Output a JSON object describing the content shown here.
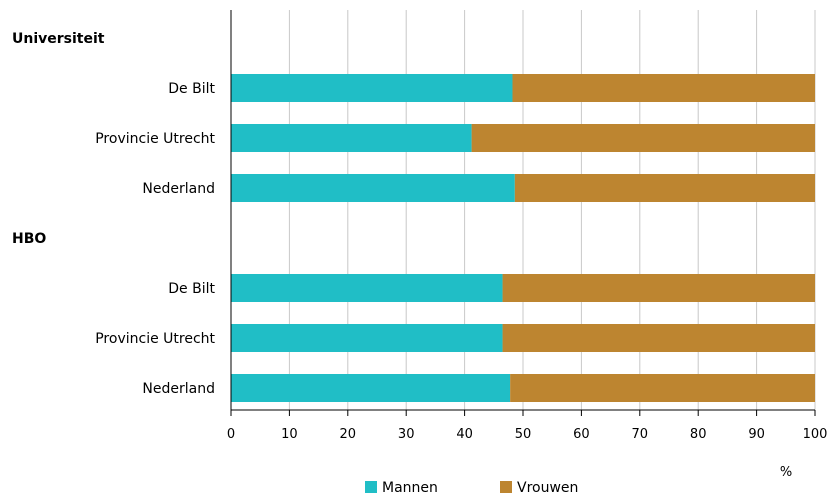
{
  "chart_data": {
    "type": "bar",
    "stacked": true,
    "orientation": "horizontal",
    "groups": [
      {
        "label": "Universiteit",
        "categories": [
          "De Bilt",
          "Provincie Utrecht",
          "Nederland"
        ]
      },
      {
        "label": "HBO",
        "categories": [
          "De Bilt",
          "Provincie Utrecht",
          "Nederland"
        ]
      }
    ],
    "series": [
      {
        "name": "Mannen",
        "color": "#20bec6",
        "values": [
          48.2,
          41.2,
          48.6,
          46.5,
          46.5,
          47.8
        ]
      },
      {
        "name": "Vrouwen",
        "color": "#bd8530",
        "values": [
          51.8,
          58.8,
          51.4,
          53.5,
          53.5,
          52.2
        ]
      }
    ],
    "xlim": [
      0,
      100
    ],
    "xticks": [
      0,
      10,
      20,
      30,
      40,
      50,
      60,
      70,
      80,
      90,
      100
    ],
    "xlabel": "%",
    "grid": true,
    "legend_position": "bottom"
  }
}
